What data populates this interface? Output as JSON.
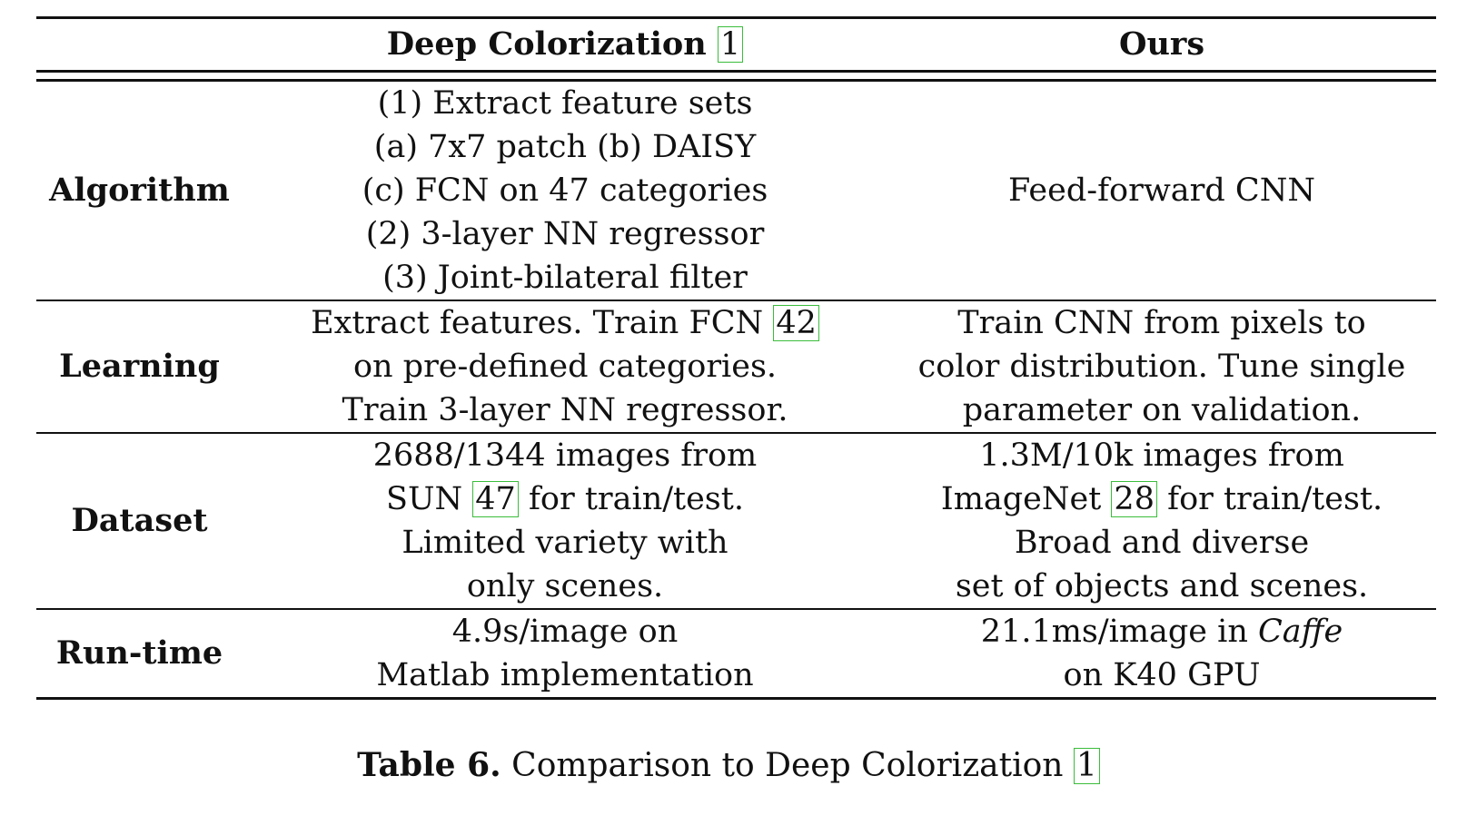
{
  "header": {
    "col1": "",
    "col2": "Deep Colorization",
    "col2_cite": "1",
    "col3": "Ours"
  },
  "rows": {
    "algorithm": {
      "label": "Algorithm",
      "deep": [
        "(1) Extract feature sets",
        "(a) 7x7 patch (b) DAISY",
        "(c) FCN on 47 categories",
        "(2) 3-layer NN regressor",
        "(3) Joint-bilateral filter"
      ],
      "ours": "Feed-forward CNN"
    },
    "learning": {
      "label": "Learning",
      "deep_line1": "Extract features. Train FCN",
      "deep_line1_cite": "42",
      "deep_line2": "on pre-defined categories.",
      "deep_line3": "Train 3-layer NN regressor.",
      "ours": [
        "Train CNN from pixels to",
        "color distribution. Tune single",
        "parameter on validation."
      ]
    },
    "dataset": {
      "label": "Dataset",
      "deep_line1": "2688/1344 images from",
      "deep_line2_pre": "SUN",
      "deep_line2_cite": "47",
      "deep_line2_post": "for train/test.",
      "deep_line3": "Limited variety with",
      "deep_line4": "only scenes.",
      "ours_line1": "1.3M/10k images from",
      "ours_line2_pre": "ImageNet",
      "ours_line2_cite": "28",
      "ours_line2_post": "for train/test.",
      "ours_line3": "Broad and diverse",
      "ours_line4": "set of objects and scenes."
    },
    "runtime": {
      "label": "Run-time",
      "deep": [
        "4.9s/image on",
        "Matlab implementation"
      ],
      "ours_line1_pre": "21.1ms/image in",
      "ours_line1_italic": "Caffe",
      "ours_line2": "on K40 GPU"
    }
  },
  "caption": {
    "label": "Table 6.",
    "text": "Comparison to Deep Colorization",
    "cite": "1"
  },
  "colors": {
    "cite_border": "#3bbd3b",
    "text": "#111111"
  }
}
